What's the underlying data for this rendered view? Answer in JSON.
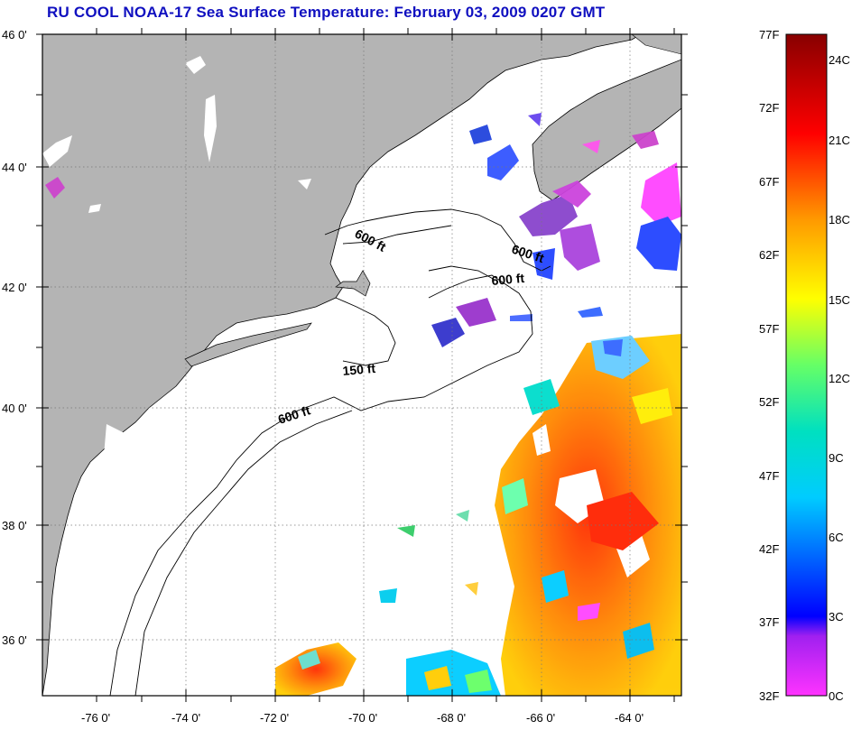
{
  "title": "RU COOL  NOAA-17  Sea Surface Temperature:  February 03, 2009 0207 GMT",
  "lat_labels": [
    "46 0'",
    "44 0'",
    "42 0'",
    "40 0'",
    "38 0'",
    "36 0'"
  ],
  "lon_labels": [
    "-76 0'",
    "-74 0'",
    "-72 0'",
    "-70 0'",
    "-68 0'",
    "-66 0'",
    "-64 0'"
  ],
  "contours": {
    "c600a": "600 ft",
    "c600b": "600 ft",
    "c600c": "600 ft",
    "c150": "150 ft",
    "c600d": "600 ft"
  },
  "colorbar": {
    "f_labels": [
      "77F",
      "72F",
      "67F",
      "62F",
      "57F",
      "52F",
      "47F",
      "42F",
      "37F",
      "32F"
    ],
    "c_labels": [
      "24C",
      "21C",
      "18C",
      "15C",
      "12C",
      "9C",
      "6C",
      "3C",
      "0C"
    ]
  },
  "colors": {
    "land": "#b4b4b4",
    "title": "#1010c0",
    "water": "#ffffff"
  }
}
